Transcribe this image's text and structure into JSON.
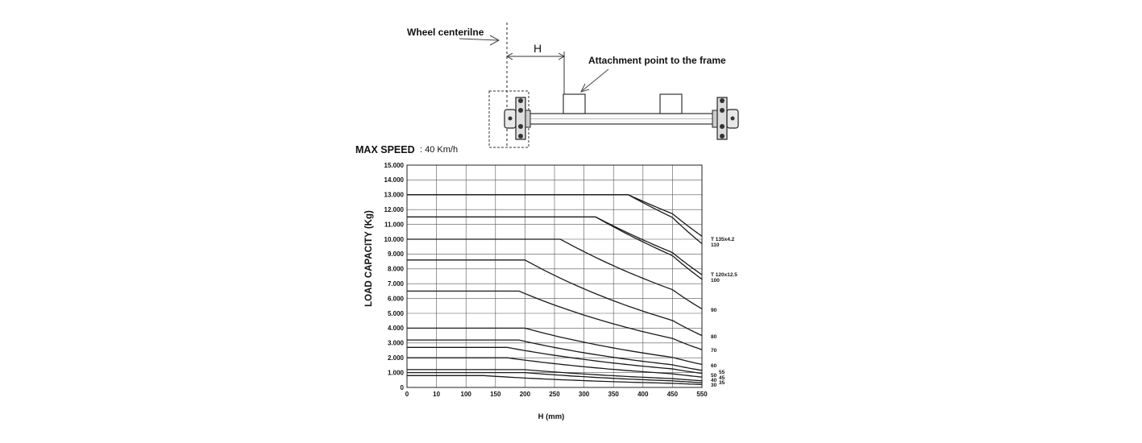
{
  "diagram": {
    "wheel_label": "Wheel centerilne",
    "h_label": "H",
    "attachment_label": "Attachment point to the frame"
  },
  "speed": {
    "label": "MAX SPEED",
    "value": ": 40 Km/h"
  },
  "chart_data": {
    "type": "line",
    "title": "",
    "xlabel": "H (mm)",
    "ylabel": "LOAD CAPACITY  (Kg)",
    "x_ticks": [
      "0",
      "10",
      "100",
      "150",
      "200",
      "250",
      "300",
      "350",
      "400",
      "450",
      "550"
    ],
    "y_ticks": [
      "0",
      "1.000",
      "2.000",
      "3.000",
      "4.000",
      "5.000",
      "6.000",
      "7.000",
      "8.000",
      "9.000",
      "10.000",
      "11.000",
      "12.000",
      "13.000",
      "14.000",
      "15.000"
    ],
    "ylim": [
      0,
      15000
    ],
    "grid": true,
    "series": [
      {
        "name": "T 135x4.2",
        "points": [
          [
            0,
            13000
          ],
          [
            375,
            13000
          ],
          [
            550,
            10200
          ]
        ]
      },
      {
        "name": "110",
        "points": [
          [
            0,
            13000
          ],
          [
            375,
            13000
          ],
          [
            550,
            9700
          ]
        ]
      },
      {
        "name": "T 120x12.5",
        "points": [
          [
            0,
            11500
          ],
          [
            320,
            11500
          ],
          [
            550,
            7600
          ]
        ]
      },
      {
        "name": "100",
        "points": [
          [
            0,
            11500
          ],
          [
            320,
            11500
          ],
          [
            550,
            7300
          ]
        ]
      },
      {
        "name": "90",
        "points": [
          [
            0,
            10000
          ],
          [
            260,
            10000
          ],
          [
            550,
            5300
          ]
        ]
      },
      {
        "name": "80",
        "points": [
          [
            0,
            8600
          ],
          [
            200,
            8600
          ],
          [
            550,
            3500
          ]
        ]
      },
      {
        "name": "70",
        "points": [
          [
            0,
            6500
          ],
          [
            190,
            6500
          ],
          [
            550,
            2550
          ]
        ]
      },
      {
        "name": "60",
        "points": [
          [
            0,
            4000
          ],
          [
            200,
            4000
          ],
          [
            550,
            1550
          ]
        ]
      },
      {
        "name": "55",
        "points": [
          [
            0,
            3200
          ],
          [
            190,
            3200
          ],
          [
            550,
            1150
          ]
        ]
      },
      {
        "name": "50",
        "points": [
          [
            0,
            2700
          ],
          [
            170,
            2700
          ],
          [
            550,
            950
          ]
        ]
      },
      {
        "name": "45",
        "points": [
          [
            0,
            2000
          ],
          [
            170,
            2000
          ],
          [
            550,
            700
          ]
        ]
      },
      {
        "name": "40",
        "points": [
          [
            0,
            1200
          ],
          [
            200,
            1200
          ],
          [
            550,
            450
          ]
        ]
      },
      {
        "name": "35",
        "points": [
          [
            0,
            1000
          ],
          [
            200,
            1000
          ],
          [
            550,
            320
          ]
        ]
      },
      {
        "name": "30",
        "points": [
          [
            0,
            800
          ],
          [
            130,
            800
          ],
          [
            550,
            200
          ]
        ]
      }
    ]
  }
}
